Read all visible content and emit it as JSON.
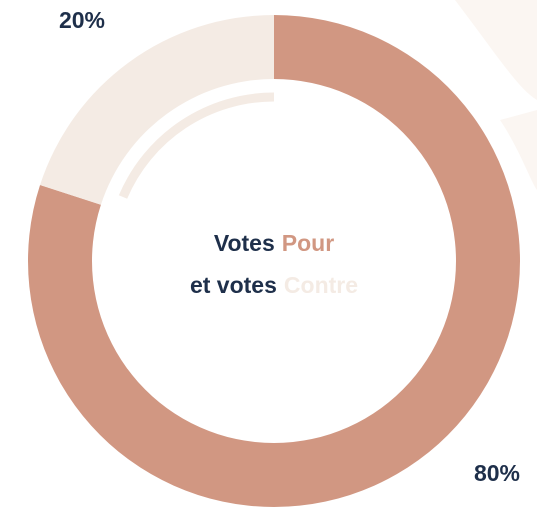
{
  "chart_data": {
    "type": "donut",
    "values": [
      80,
      20
    ],
    "value_labels": [
      "80%",
      "20%"
    ],
    "colors": [
      "#d19782",
      "#f4ebe4"
    ],
    "center_text": [
      [
        "Votes",
        "Pour"
      ],
      [
        "et votes",
        "Contre"
      ]
    ],
    "center_colors": [
      "#1e2f4a",
      "#d19782",
      "#f4ebe4"
    ]
  }
}
